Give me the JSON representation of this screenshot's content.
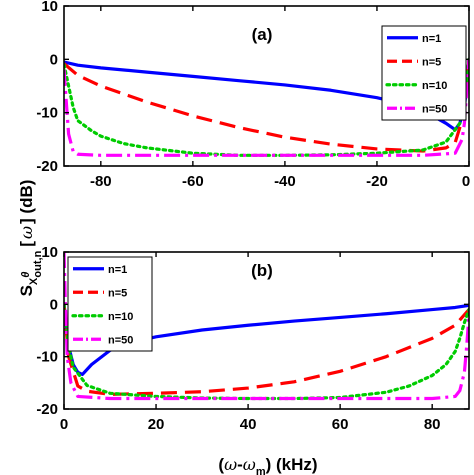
{
  "chart_data": [
    {
      "type": "line",
      "panel_label": "(a)",
      "xlim": [
        -88,
        0
      ],
      "ylim": [
        -20,
        10
      ],
      "xticks": [
        -80,
        -60,
        -40,
        -20,
        0
      ],
      "yticks": [
        -20,
        -10,
        0,
        10
      ],
      "legend_position": "top-right",
      "series": [
        {
          "name": "n=1",
          "color": "#0000ff",
          "dash": "solid",
          "x": [
            -88,
            -85,
            -80,
            -70,
            -60,
            -50,
            -40,
            -30,
            -20,
            -15,
            -10,
            -5,
            -3,
            -2,
            -1,
            -0.5,
            0
          ],
          "y": [
            -0.5,
            -1.1,
            -1.6,
            -2.4,
            -3.2,
            -4.0,
            -4.8,
            -5.8,
            -7.2,
            -8.2,
            -9.6,
            -12.0,
            -13.2,
            -12.0,
            -9.0,
            -5.0,
            0
          ]
        },
        {
          "name": "n=5",
          "color": "#ff0000",
          "dash": "dashed",
          "x": [
            -88,
            -85,
            -80,
            -70,
            -60,
            -50,
            -40,
            -30,
            -20,
            -15,
            -10,
            -5,
            -3,
            -1,
            -0.5,
            0
          ],
          "y": [
            -0.8,
            -3.0,
            -5.0,
            -8.0,
            -10.6,
            -12.8,
            -14.6,
            -15.9,
            -16.8,
            -17.0,
            -17.2,
            -16.6,
            -15.6,
            -10.0,
            -5.0,
            0
          ]
        },
        {
          "name": "n=10",
          "color": "#00cc00",
          "dash": "dotted",
          "x": [
            -88,
            -87,
            -86,
            -85,
            -82,
            -80,
            -75,
            -70,
            -60,
            -50,
            -40,
            -30,
            -20,
            -10,
            -5,
            -2,
            -1,
            -0.5,
            0
          ],
          "y": [
            -1.0,
            -5.0,
            -9.0,
            -11.5,
            -13.4,
            -14.4,
            -15.8,
            -16.6,
            -17.6,
            -18.0,
            -18.0,
            -17.9,
            -17.6,
            -17.0,
            -15.5,
            -12.0,
            -8.0,
            -4.0,
            0
          ]
        },
        {
          "name": "n=50",
          "color": "#ff00ff",
          "dash": "dashdot",
          "x": [
            -88,
            -87.5,
            -87,
            -86,
            -85,
            -80,
            -70,
            -60,
            -50,
            -40,
            -30,
            -20,
            -10,
            -3,
            -1.5,
            -1,
            -0.5,
            0
          ],
          "y": [
            -2.0,
            -8.0,
            -14.0,
            -17.3,
            -17.8,
            -18.0,
            -18.0,
            -18.0,
            -18.0,
            -18.0,
            -18.0,
            -18.0,
            -18.0,
            -17.6,
            -15.0,
            -12.0,
            -6.0,
            0
          ]
        }
      ]
    },
    {
      "type": "line",
      "panel_label": "(b)",
      "xlim": [
        0,
        88
      ],
      "ylim": [
        -20,
        10
      ],
      "xticks": [
        0,
        20,
        40,
        60,
        80
      ],
      "yticks": [
        -20,
        -10,
        0,
        10
      ],
      "legend_position": "top-left",
      "series": [
        {
          "name": "n=1",
          "color": "#0000ff",
          "dash": "solid",
          "x": [
            0,
            0.5,
            1,
            2,
            3,
            4,
            6,
            10,
            15,
            20,
            30,
            40,
            50,
            60,
            70,
            80,
            85,
            88
          ],
          "y": [
            0,
            -4.0,
            -8.0,
            -11.5,
            -13.0,
            -13.4,
            -11.5,
            -8.8,
            -7.2,
            -6.2,
            -4.9,
            -4.0,
            -3.2,
            -2.5,
            -1.8,
            -1.0,
            -0.6,
            -0.2
          ]
        },
        {
          "name": "n=5",
          "color": "#ff0000",
          "dash": "dashed",
          "x": [
            0,
            0.5,
            1,
            3,
            5,
            10,
            15,
            20,
            30,
            40,
            50,
            60,
            70,
            80,
            85,
            88
          ],
          "y": [
            0,
            -5.0,
            -10.0,
            -15.6,
            -16.6,
            -17.2,
            -17.1,
            -17.0,
            -16.7,
            -16.0,
            -14.8,
            -12.8,
            -10.0,
            -6.5,
            -4.0,
            -1.0
          ]
        },
        {
          "name": "n=10",
          "color": "#00cc00",
          "dash": "dotted",
          "x": [
            0,
            0.5,
            1,
            2,
            5,
            10,
            20,
            30,
            40,
            50,
            60,
            70,
            75,
            80,
            83,
            85,
            86,
            87,
            88
          ],
          "y": [
            0,
            -4.0,
            -8.0,
            -12.0,
            -15.5,
            -17.0,
            -17.6,
            -17.9,
            -18.0,
            -18.0,
            -17.8,
            -16.8,
            -15.6,
            -13.6,
            -11.5,
            -9.0,
            -6.5,
            -3.5,
            -1.0
          ]
        },
        {
          "name": "n=50",
          "color": "#ff00ff",
          "dash": "dashdot",
          "x": [
            0,
            0.3,
            0.7,
            1.5,
            3,
            10,
            20,
            30,
            40,
            50,
            60,
            70,
            80,
            85,
            86,
            87,
            87.5,
            88
          ],
          "y": [
            10,
            0,
            -10.0,
            -15.0,
            -17.6,
            -18.0,
            -18.0,
            -18.0,
            -18.0,
            -18.0,
            -18.0,
            -18.0,
            -18.0,
            -17.6,
            -16.5,
            -13.0,
            -8.0,
            -2.0
          ]
        }
      ]
    }
  ]
}
